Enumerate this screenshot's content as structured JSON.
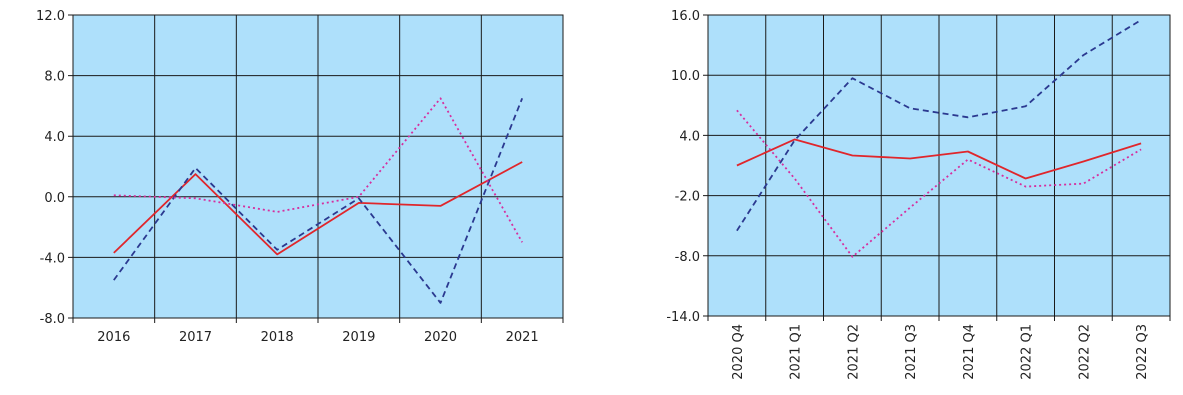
{
  "colors": {
    "plot_bg": "#aee0fb",
    "grid": "#1a1a1a",
    "series_solid": "#e0262b",
    "series_dashed": "#2b3990",
    "series_dotted": "#d62e9e"
  },
  "chart_data": [
    {
      "type": "line",
      "title": "",
      "xlabel": "",
      "ylabel": "",
      "categories": [
        "2016",
        "2017",
        "2018",
        "2019",
        "2020",
        "2021"
      ],
      "ylim": [
        -8.0,
        12.0
      ],
      "yticks": [
        "12.0",
        "8.0",
        "4.0",
        "0.0",
        "-4.0",
        "-8.0"
      ],
      "grid": true,
      "legend": "none",
      "series": [
        {
          "style": "solid",
          "values": [
            -3.7,
            1.5,
            -3.8,
            -0.4,
            -0.6,
            2.3
          ]
        },
        {
          "style": "dashed",
          "values": [
            -5.5,
            1.9,
            -3.5,
            -0.1,
            -7.0,
            6.5
          ]
        },
        {
          "style": "dotted",
          "values": [
            0.1,
            -0.1,
            -1.0,
            0.0,
            6.5,
            -3.0
          ]
        }
      ]
    },
    {
      "type": "line",
      "title": "",
      "xlabel": "",
      "ylabel": "",
      "categories": [
        "2020 Q4",
        "2021 Q1",
        "2021 Q2",
        "2021 Q3",
        "2021 Q4",
        "2022 Q1",
        "2022 Q2",
        "2022 Q3"
      ],
      "ylim": [
        -14.0,
        16.0
      ],
      "yticks": [
        "16.0",
        "10.0",
        "4.0",
        "-2.0",
        "-8.0",
        "-14.0"
      ],
      "grid": true,
      "legend": "none",
      "series": [
        {
          "style": "solid",
          "values": [
            1.0,
            3.6,
            2.0,
            1.7,
            2.4,
            -0.3,
            1.4,
            3.2
          ]
        },
        {
          "style": "dashed",
          "values": [
            -5.5,
            3.5,
            9.7,
            6.7,
            5.8,
            6.9,
            12.0,
            15.5
          ]
        },
        {
          "style": "dotted",
          "values": [
            6.5,
            -0.3,
            -8.1,
            -3.2,
            1.6,
            -1.1,
            -0.8,
            2.6
          ]
        }
      ]
    }
  ]
}
